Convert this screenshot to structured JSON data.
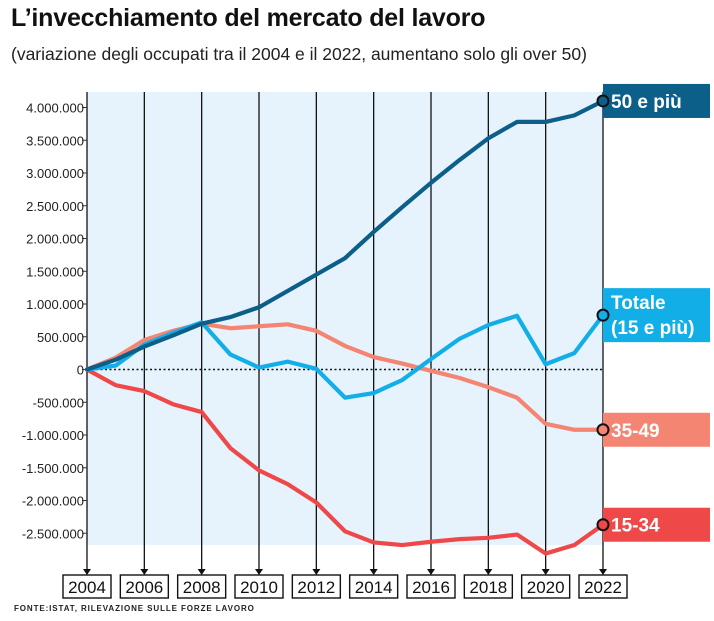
{
  "header": {
    "title": "L’invecchiamento del mercato del lavoro",
    "subtitle": "(variazione degli occupati tra il 2004 e il 2022, aumentano solo gli over 50)"
  },
  "footer": {
    "source": "FONTE:ISTAT, RILEVAZIONE SULLE FORZE LAVORO"
  },
  "chart_data": {
    "type": "line",
    "title": "L’invecchiamento del mercato del lavoro",
    "subtitle": "(variazione degli occupati tra il 2004 e il 2022, aumentano solo gli over 50)",
    "xlabel": "",
    "ylabel": "",
    "x": [
      2004,
      2005,
      2006,
      2007,
      2008,
      2009,
      2010,
      2011,
      2012,
      2013,
      2014,
      2015,
      2016,
      2017,
      2018,
      2019,
      2020,
      2021,
      2022
    ],
    "x_tick_labels": [
      "2004",
      "2006",
      "2008",
      "2010",
      "2012",
      "2014",
      "2016",
      "2018",
      "2020",
      "2022"
    ],
    "y_tick_values": [
      4000000,
      3500000,
      3000000,
      2500000,
      2000000,
      1500000,
      1000000,
      500000,
      0,
      -500000,
      -1000000,
      -1500000,
      -2000000,
      -2500000
    ],
    "y_tick_labels": [
      "4.000.000",
      "3.500.000",
      "3.000.000",
      "2.500.000",
      "2.000.000",
      "1.500.000",
      "1.000.000",
      "500.000",
      "0",
      "-500.000",
      "-1.000.000",
      "-1.500.000",
      "-2.000.000",
      "-2.500.000"
    ],
    "ylim": [
      -2700000,
      4200000
    ],
    "grid": "vertical lines at labeled years, dotted zero line",
    "background_color": "#e6f3fc",
    "series": [
      {
        "name": "50 e più",
        "label": "50 e più",
        "color": "#0b5f88",
        "values": [
          0,
          150000,
          350000,
          520000,
          700000,
          800000,
          950000,
          1200000,
          1450000,
          1700000,
          2100000,
          2480000,
          2850000,
          3200000,
          3530000,
          3780000,
          3780000,
          3880000,
          4100000
        ]
      },
      {
        "name": "Totale (15 e più)",
        "label": [
          "Totale",
          "(15 e più)"
        ],
        "color": "#11aee8",
        "values": [
          0,
          60000,
          380000,
          560000,
          720000,
          230000,
          30000,
          120000,
          10000,
          -430000,
          -360000,
          -160000,
          160000,
          470000,
          680000,
          820000,
          80000,
          250000,
          830000
        ]
      },
      {
        "name": "35-49",
        "label": "35-49",
        "color": "#f48572",
        "values": [
          0,
          180000,
          450000,
          590000,
          700000,
          630000,
          660000,
          690000,
          590000,
          360000,
          190000,
          90000,
          -20000,
          -130000,
          -270000,
          -430000,
          -830000,
          -920000,
          -920000
        ]
      },
      {
        "name": "15-34",
        "label": "15-34",
        "color": "#ef4848",
        "values": [
          0,
          -240000,
          -330000,
          -530000,
          -650000,
          -1200000,
          -1540000,
          -1750000,
          -2030000,
          -2470000,
          -2640000,
          -2680000,
          -2630000,
          -2590000,
          -2570000,
          -2520000,
          -2810000,
          -2680000,
          -2370000
        ]
      }
    ]
  }
}
